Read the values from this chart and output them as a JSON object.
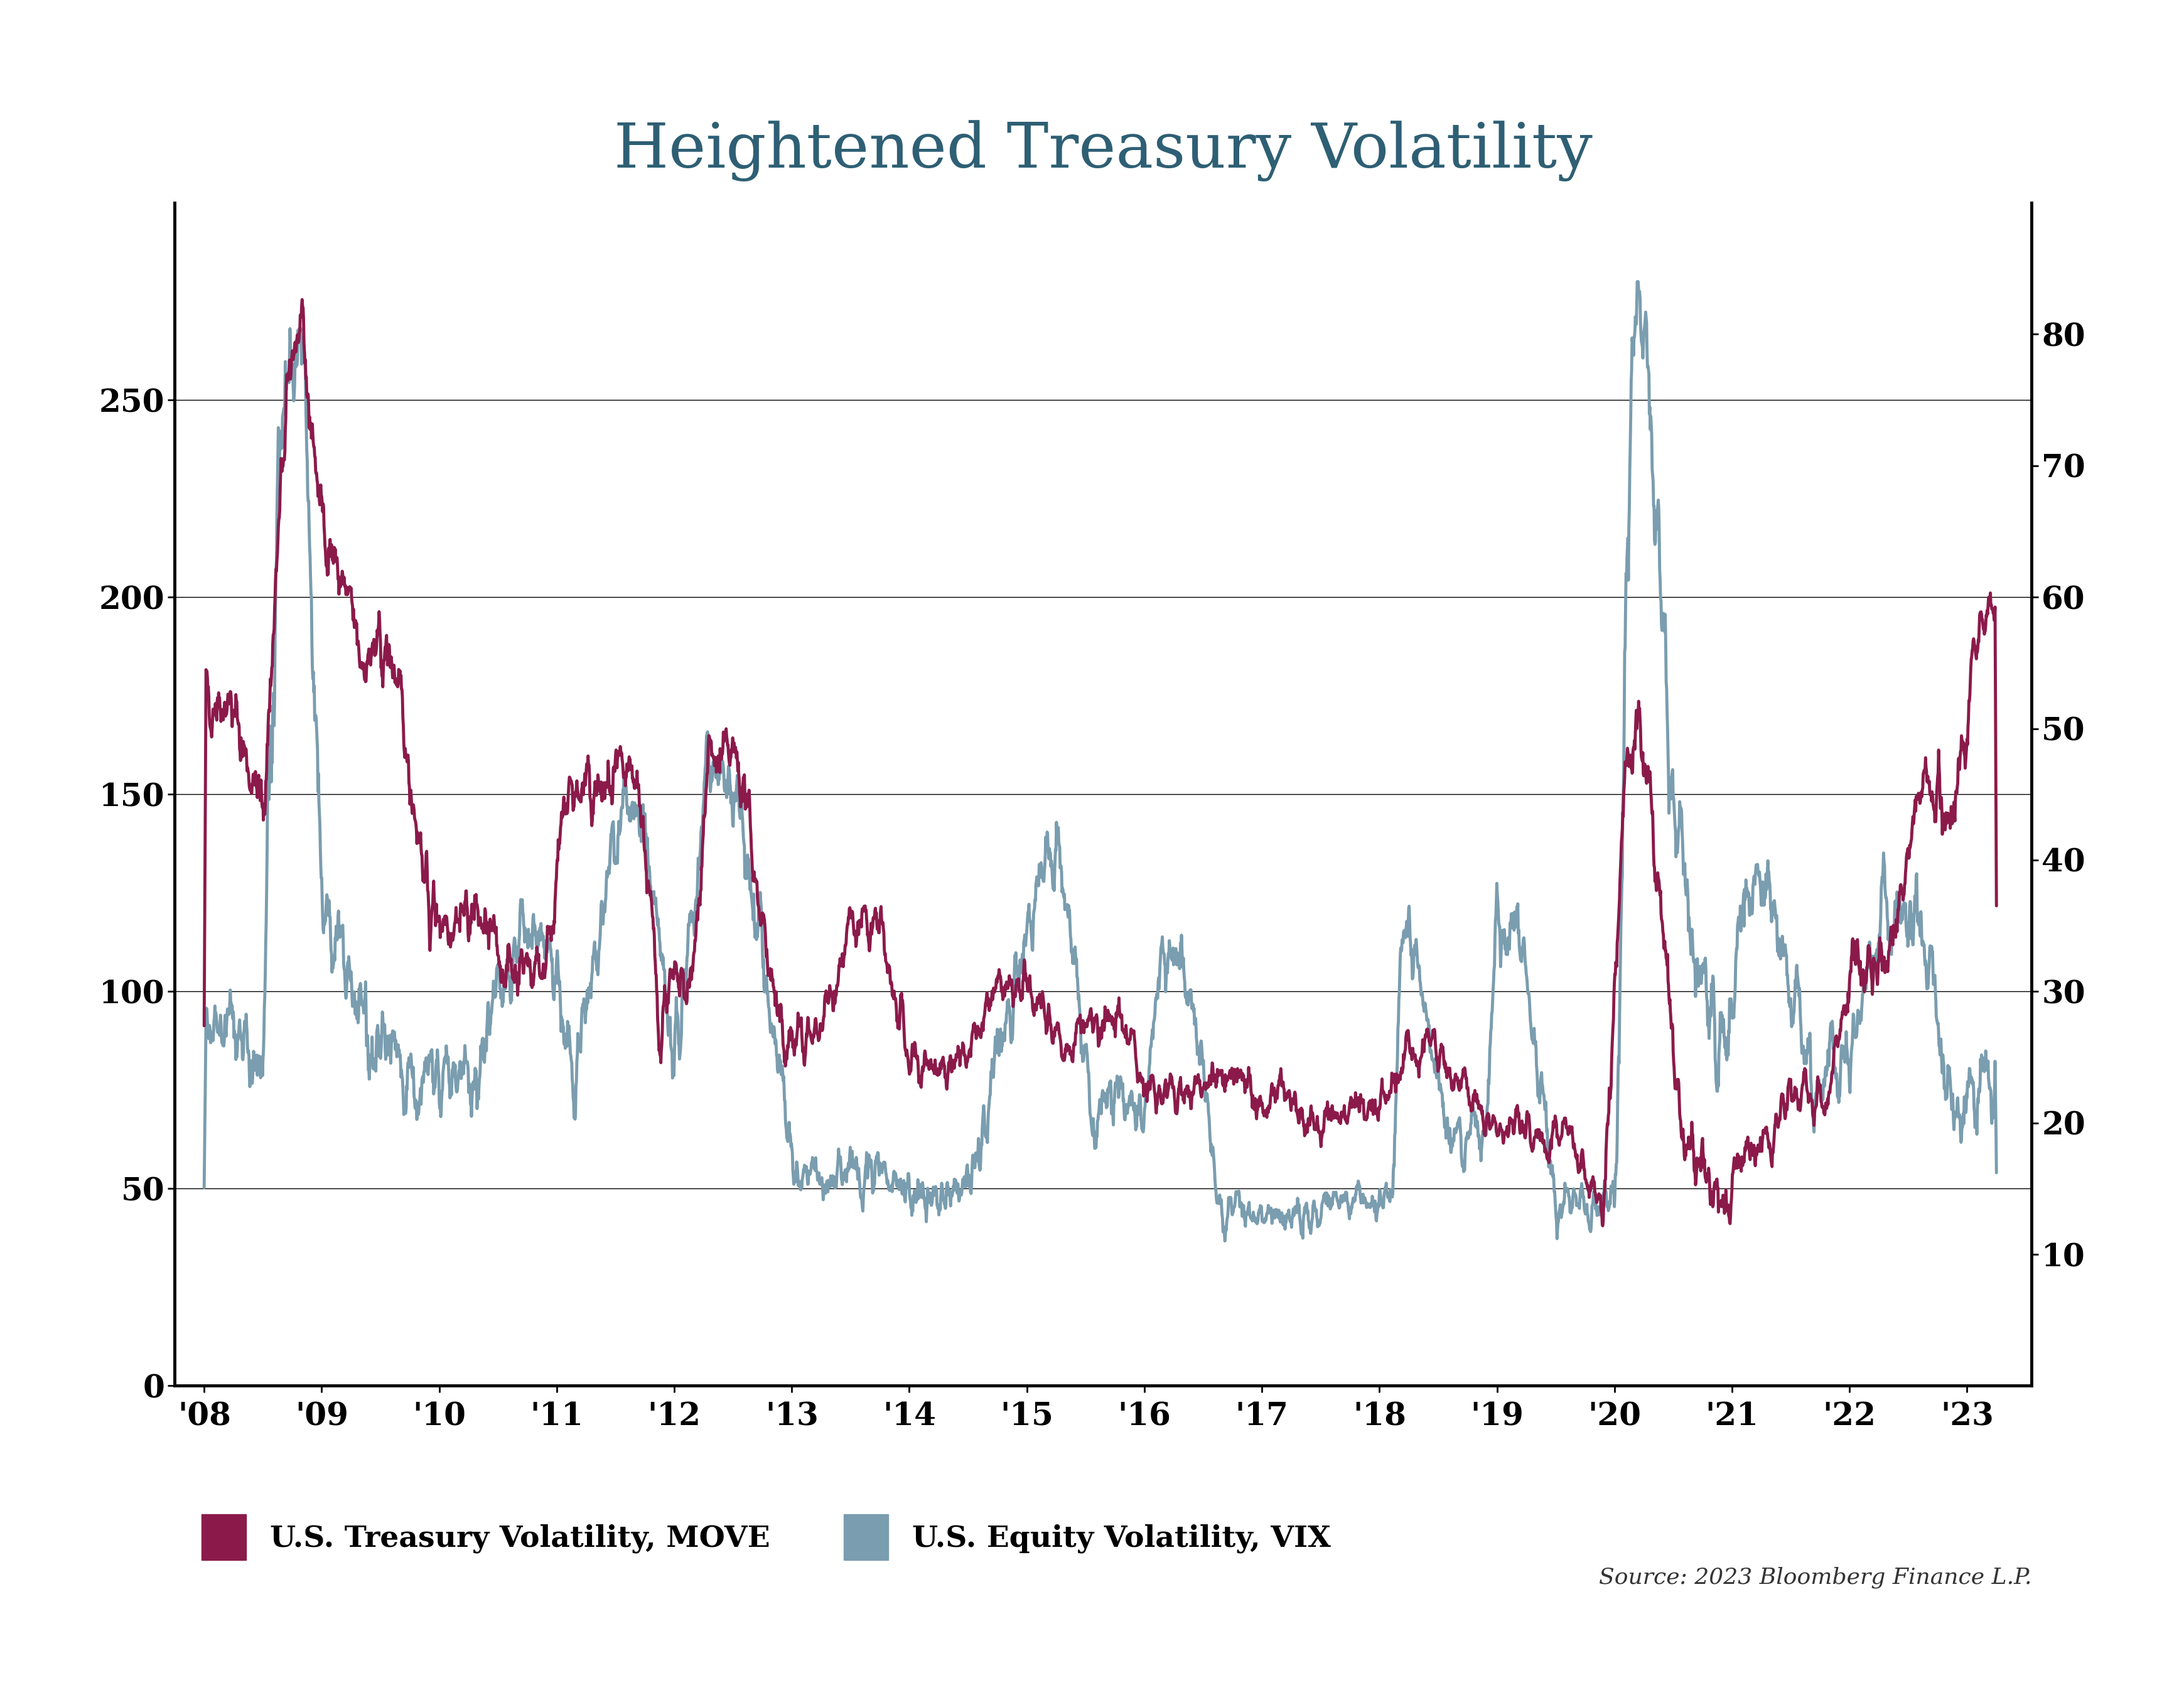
{
  "title": "Heightened Treasury Volatility",
  "title_color": "#2e5f74",
  "title_fontsize": 72,
  "move_color": "#8B1A4A",
  "vix_color": "#7A9DAF",
  "left_ylim": [
    0,
    300
  ],
  "right_ylim": [
    0,
    90
  ],
  "left_yticks": [
    0,
    50,
    100,
    150,
    200,
    250
  ],
  "right_yticks": [
    10,
    20,
    30,
    40,
    50,
    60,
    70,
    80
  ],
  "xlabel_years": [
    "'08",
    "'09",
    "'10",
    "'11",
    "'12",
    "'13",
    "'14",
    "'15",
    "'16",
    "'17",
    "'18",
    "'19",
    "'20",
    "'21",
    "'22",
    "'23"
  ],
  "source_text": "Source: 2023 Bloomberg Finance L.P.",
  "legend_move_label": "U.S. Treasury Volatility, MOVE",
  "legend_vix_label": "U.S. Equity Volatility, VIX",
  "line_width": 3.5,
  "background_color": "#ffffff",
  "grid_color": "#000000",
  "axis_color": "#000000",
  "tick_fontsize": 36,
  "legend_fontsize": 34,
  "source_fontsize": 26
}
